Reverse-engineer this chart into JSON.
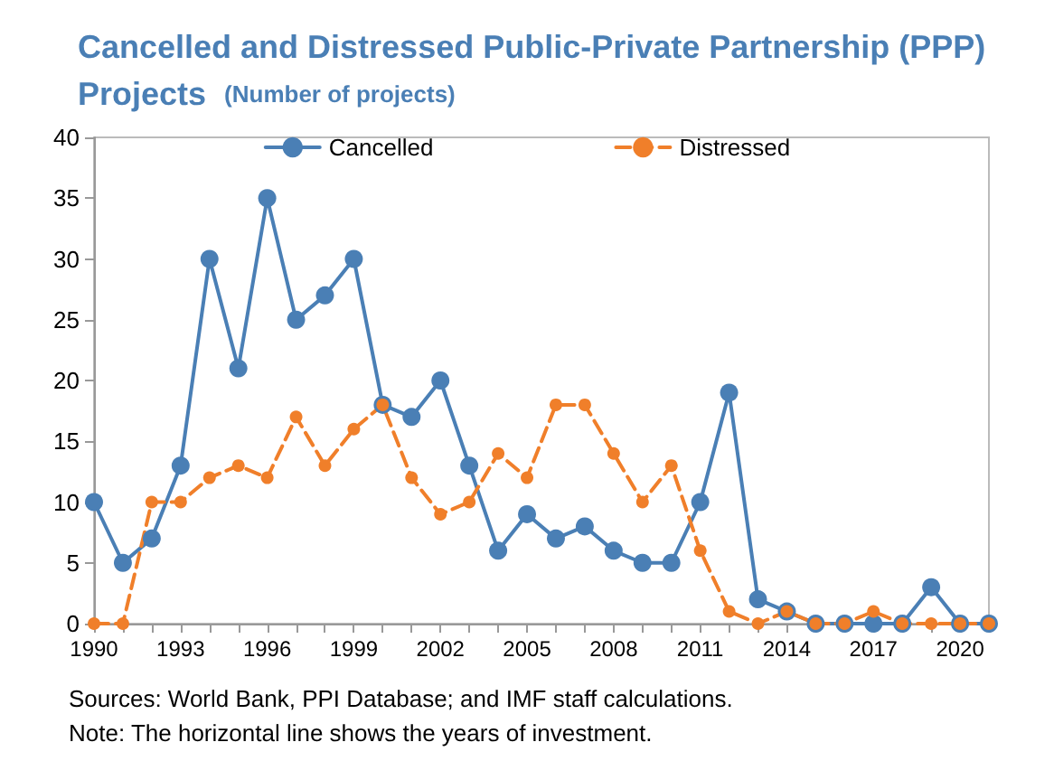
{
  "chart_data": {
    "type": "line",
    "title": "Cancelled and Distressed Public-Private Partnership (PPP) Projects",
    "subtitle": "(Number of projects)",
    "categories": [
      "1990",
      null,
      null,
      "1993",
      null,
      null,
      "1996",
      null,
      null,
      "1999",
      null,
      null,
      "2002",
      null,
      null,
      "2005",
      null,
      null,
      "2008",
      null,
      null,
      "2011",
      null,
      null,
      "2014",
      null,
      null,
      "2017",
      null,
      null,
      "2020",
      null
    ],
    "series": [
      {
        "name": "Cancelled",
        "color": "#4a7fb5",
        "line_style": "solid",
        "values": [
          10,
          5,
          7,
          13,
          30,
          21,
          35,
          25,
          27,
          30,
          18,
          17,
          20,
          13,
          6,
          9,
          7,
          8,
          6,
          5,
          5,
          10,
          19,
          2,
          1,
          0,
          0,
          0,
          0,
          3,
          0,
          0
        ]
      },
      {
        "name": "Distressed",
        "color": "#f07f2a",
        "line_style": "dashed",
        "values": [
          0,
          0,
          10,
          10,
          12,
          13,
          12,
          17,
          13,
          16,
          18,
          12,
          9,
          10,
          14,
          12,
          18,
          18,
          14,
          10,
          13,
          6,
          1,
          0,
          1,
          0,
          0,
          1,
          0,
          0,
          0,
          0
        ]
      }
    ],
    "ylim": [
      0,
      40
    ],
    "yticks": [
      0,
      5,
      10,
      15,
      20,
      25,
      30,
      35,
      40
    ],
    "grid": false,
    "legend": "top",
    "marker": "circle",
    "annotations": [
      "Sources: World Bank, PPI Database; and IMF staff calculations.",
      "Note: The horizontal line shows the years of investment."
    ]
  }
}
